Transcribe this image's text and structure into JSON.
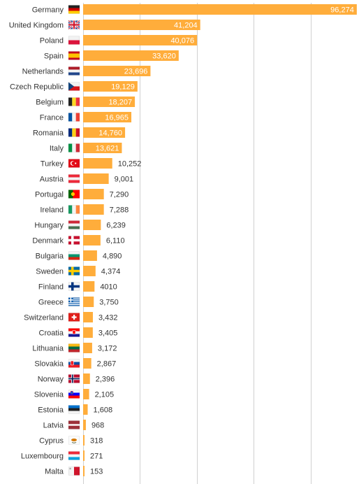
{
  "chart_data": {
    "type": "bar",
    "orientation": "horizontal",
    "bar_color": "#ffad3b",
    "grid_color": "#d0d0d0",
    "grid": true,
    "xlim": [
      0,
      100000
    ],
    "gridlines": [
      0,
      20000,
      40000,
      60000,
      80000,
      100000
    ],
    "label_placement": "inside for large bars, outside for small bars",
    "categories": [
      "Germany",
      "United Kingdom",
      "Poland",
      "Spain",
      "Netherlands",
      "Czech Republic",
      "Belgium",
      "France",
      "Romania",
      "Italy",
      "Turkey",
      "Austria",
      "Portugal",
      "Ireland",
      "Hungary",
      "Denmark",
      "Bulgaria",
      "Sweden",
      "Finland",
      "Greece",
      "Switzerland",
      "Croatia",
      "Lithuania",
      "Slovakia",
      "Norway",
      "Slovenia",
      "Estonia",
      "Latvia",
      "Cyprus",
      "Luxembourg",
      "Malta"
    ],
    "values": [
      96274,
      41204,
      40076,
      33620,
      23696,
      19129,
      18207,
      16965,
      14760,
      13621,
      10252,
      9001,
      7290,
      7288,
      6239,
      6110,
      4890,
      4374,
      4010,
      3750,
      3432,
      3405,
      3172,
      2867,
      2396,
      2105,
      1608,
      968,
      318,
      271,
      153
    ],
    "value_labels": [
      "96,274",
      "41,204",
      "40,076",
      "33,620",
      "23,696",
      "19,129",
      "18,207",
      "16,965",
      "14,760",
      "13,621",
      "10,252",
      "9,001",
      "7,290",
      "7,288",
      "6,239",
      "6,110",
      "4,890",
      "4,374",
      "4010",
      "3,750",
      "3,432",
      "3,405",
      "3,172",
      "2,867",
      "2,396",
      "2,105",
      "1,608",
      "968",
      "318",
      "271",
      "153"
    ],
    "flag_icons": [
      "germany-flag-icon",
      "united-kingdom-flag-icon",
      "poland-flag-icon",
      "spain-flag-icon",
      "netherlands-flag-icon",
      "czech-republic-flag-icon",
      "belgium-flag-icon",
      "france-flag-icon",
      "romania-flag-icon",
      "italy-flag-icon",
      "turkey-flag-icon",
      "austria-flag-icon",
      "portugal-flag-icon",
      "ireland-flag-icon",
      "hungary-flag-icon",
      "denmark-flag-icon",
      "bulgaria-flag-icon",
      "sweden-flag-icon",
      "finland-flag-icon",
      "greece-flag-icon",
      "switzerland-flag-icon",
      "croatia-flag-icon",
      "lithuania-flag-icon",
      "slovakia-flag-icon",
      "norway-flag-icon",
      "slovenia-flag-icon",
      "estonia-flag-icon",
      "latvia-flag-icon",
      "cyprus-flag-icon",
      "luxembourg-flag-icon",
      "malta-flag-icon"
    ]
  }
}
